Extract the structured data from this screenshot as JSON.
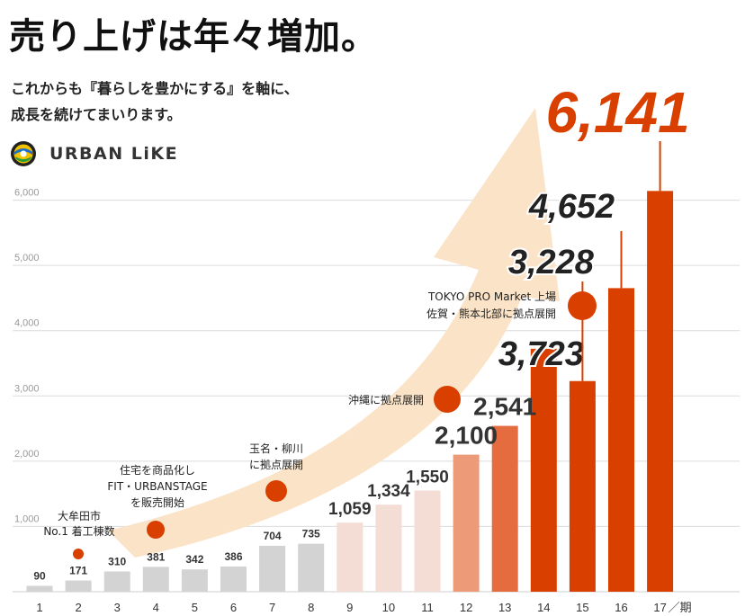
{
  "header": {
    "title": "売り上げは年々増加。",
    "subtitle_line1": "これからも『暮らしを豊かにする』を軸に、",
    "subtitle_line2": "成長を続けてまいります。",
    "logo_text": "URBAN LiKE"
  },
  "colors": {
    "gray_bar": "#d3d3d3",
    "pale_bar": "#f4ddd4",
    "peach_bar": "#ec9a78",
    "mid_bar": "#e56c3f",
    "orange_bar": "#d94000",
    "arrow": "#fbe3c7",
    "dot": "#d94000"
  },
  "chart_data": {
    "type": "bar",
    "x_unit": "期",
    "categories": [
      "1",
      "2",
      "3",
      "4",
      "5",
      "6",
      "7",
      "8",
      "9",
      "10",
      "11",
      "12",
      "13",
      "14",
      "15",
      "16",
      "17"
    ],
    "values": [
      90,
      171,
      310,
      381,
      342,
      386,
      704,
      735,
      1059,
      1334,
      1550,
      2100,
      2541,
      3723,
      3228,
      4652,
      6141
    ],
    "labels": [
      "90",
      "171",
      "310",
      "381",
      "342",
      "386",
      "704",
      "735",
      "1,059",
      "1,334",
      "1,550",
      "2,100",
      "2,541",
      "3,723",
      "3,228",
      "4,652",
      "6,141"
    ],
    "ylim": [
      0,
      6300
    ],
    "yticks": [
      1000,
      2000,
      3000,
      4000,
      5000,
      6000
    ],
    "ytick_labels": [
      "1,000",
      "2,000",
      "3,000",
      "4,000",
      "5,000",
      "6,000"
    ],
    "grid": true,
    "annotations": [
      {
        "category": "2",
        "lines": [
          "大牟田市",
          "No.1 着工棟数"
        ]
      },
      {
        "category": "4",
        "lines": [
          "住宅を商品化し",
          "FIT・URBANSTAGE",
          "を販売開始"
        ]
      },
      {
        "category": "7",
        "lines": [
          "玉名・柳川",
          "に拠点展開"
        ]
      },
      {
        "category": "11",
        "lines": [
          "沖縄に拠点展開"
        ]
      },
      {
        "category": "14",
        "lines": [
          "TOKYO PRO Market 上場",
          "佐賀・熊本北部に拠点展開"
        ]
      }
    ]
  }
}
